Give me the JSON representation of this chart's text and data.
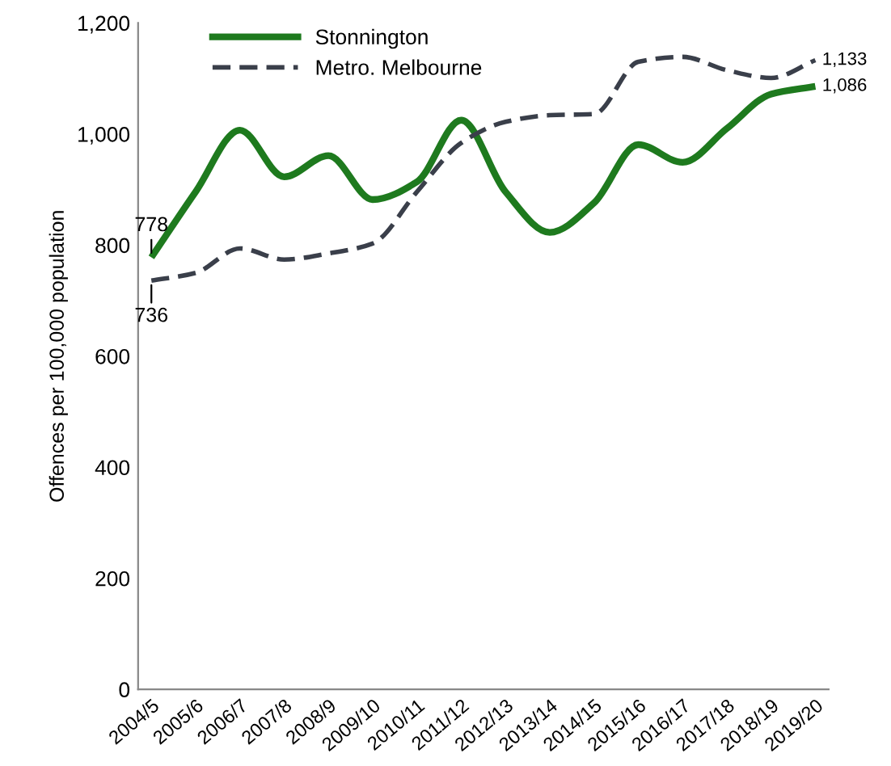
{
  "chart_data": {
    "type": "line",
    "ylabel": "Offences per 100,000 population",
    "categories": [
      "2004/5",
      "2005/6",
      "2006/7",
      "2007/8",
      "2008/9",
      "2009/10",
      "2010/11",
      "2011/12",
      "2012/13",
      "2013/14",
      "2014/15",
      "2015/16",
      "2016/17",
      "2017/18",
      "2018/19",
      "2019/20"
    ],
    "series": [
      {
        "name": "Stonnington",
        "color": "#1e7a1e",
        "line_style": "solid",
        "values": [
          778,
          896,
          1007,
          923,
          961,
          882,
          914,
          1025,
          896,
          823,
          876,
          981,
          949,
          1010,
          1072,
          1086
        ],
        "value_labels": [
          "778",
          null,
          null,
          null,
          null,
          null,
          null,
          null,
          null,
          null,
          null,
          null,
          null,
          null,
          null,
          "1,086"
        ]
      },
      {
        "name": "Metro. Melbourne",
        "color": "#3a3f4a",
        "line_style": "dashed",
        "values": [
          736,
          750,
          794,
          774,
          785,
          803,
          896,
          984,
          1022,
          1034,
          1036,
          1130,
          1139,
          1115,
          1101,
          1133
        ],
        "value_labels": [
          "736",
          null,
          null,
          null,
          null,
          null,
          null,
          null,
          null,
          null,
          null,
          null,
          null,
          null,
          null,
          "1,133"
        ]
      }
    ],
    "ylim": [
      0,
      1200
    ],
    "yticks": [
      0,
      {
        "value": 200,
        "label": "200"
      },
      {
        "value": 400,
        "label": "400"
      },
      {
        "value": 600,
        "label": "600"
      },
      {
        "value": 800,
        "label": "800"
      },
      {
        "value": 1000,
        "label": "1,000"
      },
      {
        "value": 1200,
        "label": "1,200"
      }
    ],
    "grid": false,
    "legend": "top left",
    "marker": "none"
  }
}
